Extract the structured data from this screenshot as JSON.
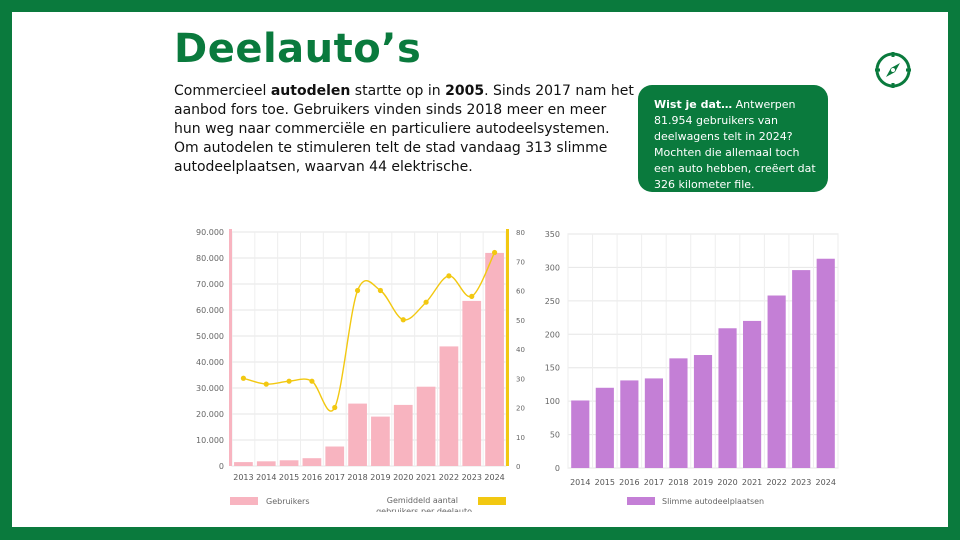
{
  "title": "Deelauto’s",
  "intro": {
    "p1": "Commercieel ",
    "bold1": "autodelen",
    "p2": " startte op in ",
    "bold2": "2005",
    "p3": ". Sinds 2017 nam het aanbod fors toe. Gebruikers vinden sinds 2018 meer en meer hun weg naar commerciële en particuliere autodeelsystemen. Om autodelen te stimuleren telt de stad vandaag 313 slimme autodeelplaatsen, waarvan 44 elektrische."
  },
  "callout": {
    "lead": "Wist je dat…",
    "text": " Antwerpen 81.954 gebruikers van deelwagens telt in 2024? Mochten die allemaal toch een auto hebben, creëert dat 326 kilometer file."
  },
  "icons": {
    "compass": "compass-icon"
  },
  "colors": {
    "green": "#0a7a3d",
    "pink": "#f8b4c0",
    "yellow": "#f2c811",
    "purple": "#c47fd6"
  },
  "chart_data": [
    {
      "type": "bar",
      "categories": [
        "2013",
        "2014",
        "2015",
        "2016",
        "2017",
        "2018",
        "2019",
        "2020",
        "2021",
        "2022",
        "2023",
        "2024"
      ],
      "series": [
        {
          "name": "Gebruikers",
          "type": "bar",
          "axis": "left",
          "values": [
            1500,
            1800,
            2200,
            3000,
            7500,
            24000,
            19000,
            23500,
            30500,
            46000,
            63500,
            81954
          ]
        },
        {
          "name": "Gemiddeld aantal gebruikers per deelauto",
          "type": "line",
          "axis": "right",
          "values": [
            30,
            28,
            29,
            29,
            20,
            60,
            60,
            50,
            56,
            65,
            58,
            73
          ]
        }
      ],
      "yticks_left": [
        "0",
        "10.000",
        "20.000",
        "30.000",
        "40.000",
        "50.000",
        "60.000",
        "70.000",
        "80.000",
        "90.000"
      ],
      "ylim_left": [
        0,
        90000
      ],
      "yticks_right": [
        "0",
        "10",
        "20",
        "30",
        "40",
        "50",
        "60",
        "70",
        "80"
      ],
      "ylim_right": [
        0,
        80
      ],
      "grid": true,
      "legend": "bottom"
    },
    {
      "type": "bar",
      "categories": [
        "2014",
        "2015",
        "2016",
        "2017",
        "2018",
        "2019",
        "2020",
        "2021",
        "2022",
        "2023",
        "2024"
      ],
      "series": [
        {
          "name": "Slimme autodeelplaatsen",
          "values": [
            101,
            120,
            131,
            134,
            164,
            169,
            209,
            220,
            258,
            296,
            313
          ]
        }
      ],
      "yticks": [
        "0",
        "50",
        "100",
        "150",
        "200",
        "250",
        "300",
        "350"
      ],
      "ylim": [
        0,
        350
      ],
      "grid": true,
      "legend": "bottom"
    }
  ]
}
